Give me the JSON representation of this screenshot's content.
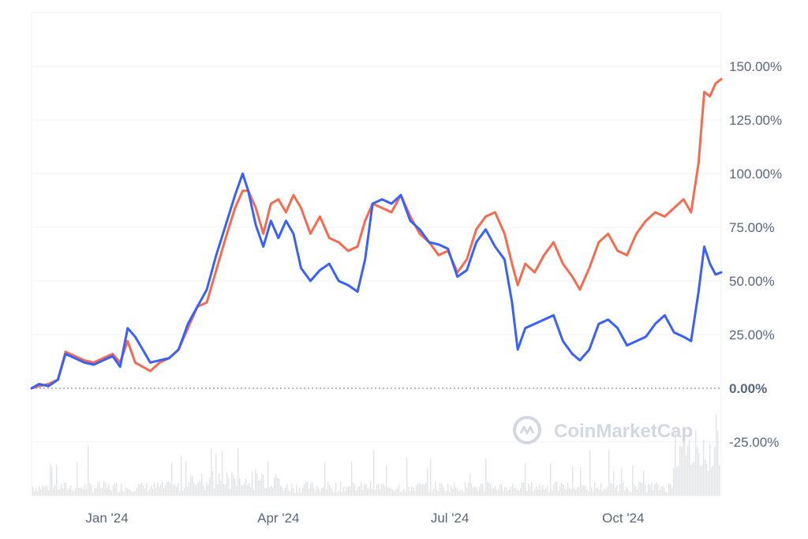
{
  "chart_data": {
    "type": "line",
    "title": "",
    "xlabel": "",
    "ylabel": "",
    "x_ticks": [
      "Jan '24",
      "Apr '24",
      "Jul '24",
      "Oct '24"
    ],
    "y_ticks": [
      "150.00%",
      "125.00%",
      "100.00%",
      "75.00%",
      "50.00%",
      "25.00%",
      "0.00%",
      "-25.00%"
    ],
    "y_tick_values": [
      150,
      125,
      100,
      75,
      50,
      25,
      0,
      -25
    ],
    "ylim": [
      -50,
      175
    ],
    "x_range_days_note_omitted": null,
    "x_start": "2023-11-22",
    "x_end": "2024-11-22",
    "series": [
      {
        "name": "",
        "color": "#3861fb",
        "points": [
          [
            "2023-11-22",
            0
          ],
          [
            "2023-11-26",
            2
          ],
          [
            "2023-12-01",
            1
          ],
          [
            "2023-12-06",
            4
          ],
          [
            "2023-12-10",
            16
          ],
          [
            "2023-12-15",
            14
          ],
          [
            "2023-12-20",
            12
          ],
          [
            "2023-12-25",
            11
          ],
          [
            "2023-12-30",
            13
          ],
          [
            "2024-01-04",
            15
          ],
          [
            "2024-01-08",
            10
          ],
          [
            "2024-01-12",
            28
          ],
          [
            "2024-01-16",
            24
          ],
          [
            "2024-01-20",
            18
          ],
          [
            "2024-01-24",
            12
          ],
          [
            "2024-01-29",
            13
          ],
          [
            "2024-02-03",
            14
          ],
          [
            "2024-02-08",
            18
          ],
          [
            "2024-02-13",
            30
          ],
          [
            "2024-02-18",
            38
          ],
          [
            "2024-02-23",
            46
          ],
          [
            "2024-02-28",
            62
          ],
          [
            "2024-03-04",
            76
          ],
          [
            "2024-03-09",
            90
          ],
          [
            "2024-03-13",
            100
          ],
          [
            "2024-03-16",
            92
          ],
          [
            "2024-03-20",
            76
          ],
          [
            "2024-03-24",
            66
          ],
          [
            "2024-03-28",
            78
          ],
          [
            "2024-04-01",
            70
          ],
          [
            "2024-04-05",
            78
          ],
          [
            "2024-04-09",
            72
          ],
          [
            "2024-04-13",
            56
          ],
          [
            "2024-04-18",
            50
          ],
          [
            "2024-04-23",
            55
          ],
          [
            "2024-04-28",
            58
          ],
          [
            "2024-05-03",
            50
          ],
          [
            "2024-05-08",
            48
          ],
          [
            "2024-05-13",
            45
          ],
          [
            "2024-05-17",
            60
          ],
          [
            "2024-05-21",
            86
          ],
          [
            "2024-05-26",
            88
          ],
          [
            "2024-05-31",
            86
          ],
          [
            "2024-06-05",
            90
          ],
          [
            "2024-06-10",
            78
          ],
          [
            "2024-06-15",
            74
          ],
          [
            "2024-06-20",
            68
          ],
          [
            "2024-06-25",
            67
          ],
          [
            "2024-06-30",
            65
          ],
          [
            "2024-07-05",
            52
          ],
          [
            "2024-07-10",
            55
          ],
          [
            "2024-07-15",
            68
          ],
          [
            "2024-07-20",
            74
          ],
          [
            "2024-07-25",
            66
          ],
          [
            "2024-07-30",
            60
          ],
          [
            "2024-08-03",
            40
          ],
          [
            "2024-08-06",
            18
          ],
          [
            "2024-08-10",
            28
          ],
          [
            "2024-08-15",
            30
          ],
          [
            "2024-08-20",
            32
          ],
          [
            "2024-08-25",
            34
          ],
          [
            "2024-08-30",
            22
          ],
          [
            "2024-09-04",
            16
          ],
          [
            "2024-09-08",
            13
          ],
          [
            "2024-09-13",
            18
          ],
          [
            "2024-09-18",
            30
          ],
          [
            "2024-09-23",
            32
          ],
          [
            "2024-09-28",
            28
          ],
          [
            "2024-10-03",
            20
          ],
          [
            "2024-10-08",
            22
          ],
          [
            "2024-10-13",
            24
          ],
          [
            "2024-10-18",
            30
          ],
          [
            "2024-10-23",
            34
          ],
          [
            "2024-10-28",
            26
          ],
          [
            "2024-11-02",
            24
          ],
          [
            "2024-11-06",
            22
          ],
          [
            "2024-11-10",
            45
          ],
          [
            "2024-11-13",
            66
          ],
          [
            "2024-11-16",
            58
          ],
          [
            "2024-11-19",
            53
          ],
          [
            "2024-11-22",
            54
          ]
        ]
      },
      {
        "name": "",
        "color": "#f56b4f",
        "points": [
          [
            "2023-11-22",
            0
          ],
          [
            "2023-11-26",
            1
          ],
          [
            "2023-12-01",
            2
          ],
          [
            "2023-12-06",
            4
          ],
          [
            "2023-12-10",
            17
          ],
          [
            "2023-12-15",
            15
          ],
          [
            "2023-12-20",
            13
          ],
          [
            "2023-12-25",
            12
          ],
          [
            "2023-12-30",
            14
          ],
          [
            "2024-01-04",
            16
          ],
          [
            "2024-01-08",
            12
          ],
          [
            "2024-01-12",
            22
          ],
          [
            "2024-01-16",
            12
          ],
          [
            "2024-01-20",
            10
          ],
          [
            "2024-01-24",
            8
          ],
          [
            "2024-01-29",
            12
          ],
          [
            "2024-02-03",
            14
          ],
          [
            "2024-02-08",
            18
          ],
          [
            "2024-02-13",
            28
          ],
          [
            "2024-02-18",
            38
          ],
          [
            "2024-02-23",
            40
          ],
          [
            "2024-02-28",
            55
          ],
          [
            "2024-03-04",
            70
          ],
          [
            "2024-03-09",
            84
          ],
          [
            "2024-03-13",
            92
          ],
          [
            "2024-03-16",
            92
          ],
          [
            "2024-03-20",
            84
          ],
          [
            "2024-03-24",
            72
          ],
          [
            "2024-03-28",
            86
          ],
          [
            "2024-04-01",
            88
          ],
          [
            "2024-04-05",
            82
          ],
          [
            "2024-04-09",
            90
          ],
          [
            "2024-04-13",
            84
          ],
          [
            "2024-04-18",
            72
          ],
          [
            "2024-04-23",
            80
          ],
          [
            "2024-04-28",
            70
          ],
          [
            "2024-05-03",
            68
          ],
          [
            "2024-05-08",
            64
          ],
          [
            "2024-05-13",
            66
          ],
          [
            "2024-05-17",
            78
          ],
          [
            "2024-05-21",
            86
          ],
          [
            "2024-05-26",
            84
          ],
          [
            "2024-05-31",
            82
          ],
          [
            "2024-06-05",
            90
          ],
          [
            "2024-06-10",
            80
          ],
          [
            "2024-06-15",
            72
          ],
          [
            "2024-06-20",
            68
          ],
          [
            "2024-06-25",
            62
          ],
          [
            "2024-06-30",
            64
          ],
          [
            "2024-07-05",
            54
          ],
          [
            "2024-07-10",
            60
          ],
          [
            "2024-07-15",
            74
          ],
          [
            "2024-07-20",
            80
          ],
          [
            "2024-07-25",
            82
          ],
          [
            "2024-07-30",
            72
          ],
          [
            "2024-08-03",
            58
          ],
          [
            "2024-08-06",
            48
          ],
          [
            "2024-08-10",
            58
          ],
          [
            "2024-08-15",
            54
          ],
          [
            "2024-08-20",
            62
          ],
          [
            "2024-08-25",
            68
          ],
          [
            "2024-08-30",
            58
          ],
          [
            "2024-09-04",
            52
          ],
          [
            "2024-09-08",
            46
          ],
          [
            "2024-09-13",
            56
          ],
          [
            "2024-09-18",
            68
          ],
          [
            "2024-09-23",
            72
          ],
          [
            "2024-09-28",
            64
          ],
          [
            "2024-10-03",
            62
          ],
          [
            "2024-10-08",
            72
          ],
          [
            "2024-10-13",
            78
          ],
          [
            "2024-10-18",
            82
          ],
          [
            "2024-10-23",
            80
          ],
          [
            "2024-10-28",
            84
          ],
          [
            "2024-11-02",
            88
          ],
          [
            "2024-11-06",
            82
          ],
          [
            "2024-11-10",
            105
          ],
          [
            "2024-11-13",
            138
          ],
          [
            "2024-11-16",
            136
          ],
          [
            "2024-11-19",
            142
          ],
          [
            "2024-11-22",
            144
          ]
        ]
      }
    ],
    "volume_color": "#dfe3ea",
    "grid": true,
    "zero_line": "dotted",
    "legend": "none"
  },
  "watermark": {
    "text": "CoinMarketCap",
    "icon": "coinmarketcap-logo-icon"
  }
}
